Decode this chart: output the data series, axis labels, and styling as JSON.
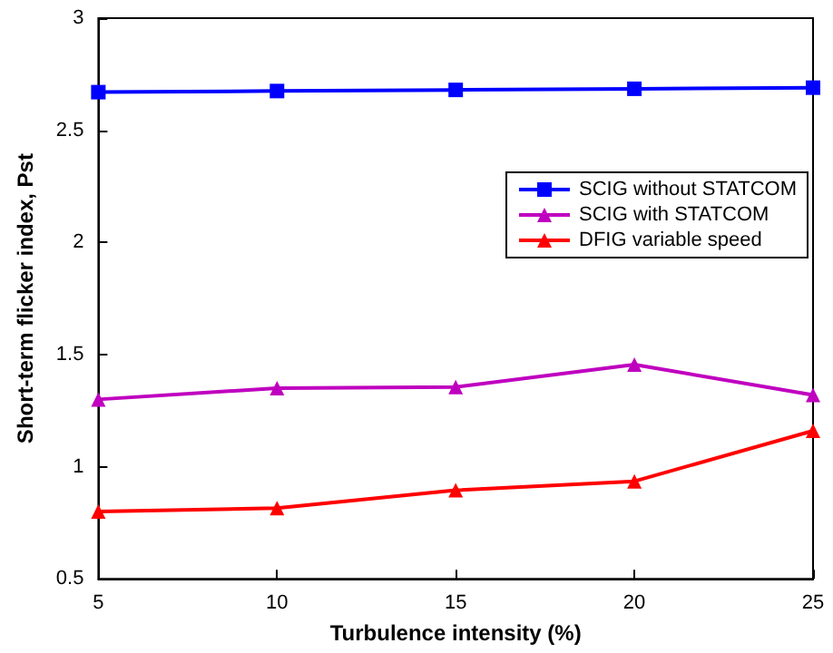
{
  "chart_data": {
    "type": "line",
    "xlabel": "Turbulence intensity (%)",
    "ylabel": "Short-term flicker index, Pst",
    "x": [
      5,
      10,
      15,
      20,
      25
    ],
    "xlim": [
      5,
      25
    ],
    "xticks": [
      5,
      10,
      15,
      20,
      25
    ],
    "ylim": [
      0.5,
      3
    ],
    "yticks": [
      0.5,
      1,
      1.5,
      2,
      2.5,
      3
    ],
    "grid": false,
    "legend": "top right",
    "line_style": "solid",
    "series": [
      {
        "name": "SCIG without STATCOM",
        "color": "#0000ff",
        "marker": "square",
        "values": [
          2.67,
          2.675,
          2.68,
          2.685,
          2.69
        ]
      },
      {
        "name": "SCIG with STATCOM",
        "color": "#bf00bf",
        "marker": "triangle",
        "values": [
          1.3,
          1.35,
          1.355,
          1.455,
          1.32
        ]
      },
      {
        "name": "DFIG variable speed",
        "color": "#ff0000",
        "marker": "triangle",
        "values": [
          0.8,
          0.815,
          0.895,
          0.935,
          1.16
        ]
      }
    ]
  }
}
